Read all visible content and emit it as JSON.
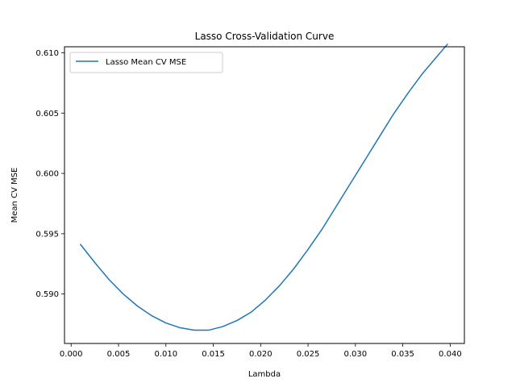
{
  "chart_data": {
    "type": "line",
    "title": "Lasso Cross-Validation Curve",
    "xlabel": "Lambda",
    "ylabel": "Mean CV MSE",
    "xlim": [
      -0.0007,
      0.0415
    ],
    "ylim": [
      0.5859,
      0.6105
    ],
    "xticks": [
      0.0,
      0.005,
      0.01,
      0.015,
      0.02,
      0.025,
      0.03,
      0.035,
      0.04
    ],
    "xtick_labels": [
      "0.000",
      "0.005",
      "0.010",
      "0.015",
      "0.020",
      "0.025",
      "0.030",
      "0.035",
      "0.040"
    ],
    "yticks": [
      0.59,
      0.595,
      0.6,
      0.605,
      0.61
    ],
    "ytick_labels": [
      "0.590",
      "0.595",
      "0.600",
      "0.605",
      "0.610"
    ],
    "grid": false,
    "legend_position": "upper-left",
    "series": [
      {
        "name": "Lasso Mean CV MSE",
        "color": "#1f77b4",
        "x": [
          0.001,
          0.0025,
          0.004,
          0.0055,
          0.007,
          0.0085,
          0.01,
          0.0115,
          0.013,
          0.0145,
          0.016,
          0.0175,
          0.019,
          0.0205,
          0.022,
          0.0235,
          0.025,
          0.0265,
          0.028,
          0.0295,
          0.031,
          0.0325,
          0.034,
          0.0355,
          0.037,
          0.0385,
          0.0397
        ],
        "y": [
          0.5941,
          0.5926,
          0.5912,
          0.59,
          0.589,
          0.5882,
          0.5876,
          0.5872,
          0.587,
          0.587,
          0.5873,
          0.5878,
          0.5885,
          0.5895,
          0.5907,
          0.5921,
          0.5937,
          0.5954,
          0.5973,
          0.5992,
          0.6011,
          0.603,
          0.6049,
          0.6066,
          0.6082,
          0.6096,
          0.6107
        ]
      }
    ]
  }
}
